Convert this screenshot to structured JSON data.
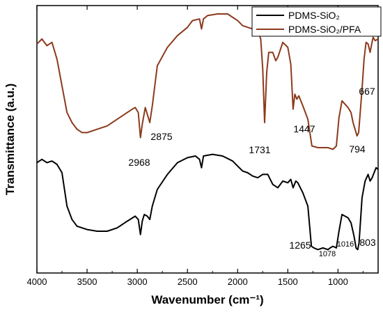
{
  "chart_data": {
    "type": "line",
    "xlabel": "Wavenumber (cm⁻¹)",
    "ylabel": "Transmittance (a.u.)",
    "xlim": [
      4000,
      600
    ],
    "x_reversed": true,
    "x_ticks": [
      4000,
      3500,
      3000,
      2500,
      2000,
      1500,
      1000
    ],
    "y_ticks_shown": false,
    "grid": false,
    "legend_position": "top-right",
    "series": [
      {
        "name": "PDMS-SiO₂",
        "color": "#000000",
        "points": [
          [
            4000,
            0.56
          ],
          [
            3950,
            0.58
          ],
          [
            3900,
            0.56
          ],
          [
            3850,
            0.57
          ],
          [
            3800,
            0.55
          ],
          [
            3750,
            0.5
          ],
          [
            3700,
            0.3
          ],
          [
            3650,
            0.22
          ],
          [
            3600,
            0.18
          ],
          [
            3500,
            0.16
          ],
          [
            3400,
            0.15
          ],
          [
            3300,
            0.15
          ],
          [
            3200,
            0.17
          ],
          [
            3100,
            0.21
          ],
          [
            3020,
            0.24
          ],
          [
            2990,
            0.22
          ],
          [
            2968,
            0.13
          ],
          [
            2950,
            0.21
          ],
          [
            2930,
            0.25
          ],
          [
            2900,
            0.24
          ],
          [
            2875,
            0.22
          ],
          [
            2850,
            0.3
          ],
          [
            2800,
            0.4
          ],
          [
            2700,
            0.49
          ],
          [
            2600,
            0.56
          ],
          [
            2500,
            0.59
          ],
          [
            2420,
            0.6
          ],
          [
            2380,
            0.58
          ],
          [
            2360,
            0.53
          ],
          [
            2340,
            0.6
          ],
          [
            2250,
            0.61
          ],
          [
            2150,
            0.6
          ],
          [
            2050,
            0.57
          ],
          [
            2000,
            0.54
          ],
          [
            1950,
            0.51
          ],
          [
            1900,
            0.5
          ],
          [
            1850,
            0.48
          ],
          [
            1800,
            0.47
          ],
          [
            1750,
            0.49
          ],
          [
            1700,
            0.49
          ],
          [
            1650,
            0.43
          ],
          [
            1600,
            0.41
          ],
          [
            1550,
            0.45
          ],
          [
            1500,
            0.44
          ],
          [
            1470,
            0.46
          ],
          [
            1447,
            0.41
          ],
          [
            1420,
            0.45
          ],
          [
            1400,
            0.44
          ],
          [
            1350,
            0.38
          ],
          [
            1300,
            0.3
          ],
          [
            1265,
            0.06
          ],
          [
            1240,
            0.05
          ],
          [
            1200,
            0.04
          ],
          [
            1150,
            0.05
          ],
          [
            1100,
            0.04
          ],
          [
            1078,
            0.05
          ],
          [
            1050,
            0.06
          ],
          [
            1016,
            0.05
          ],
          [
            990,
            0.15
          ],
          [
            960,
            0.25
          ],
          [
            930,
            0.24
          ],
          [
            900,
            0.23
          ],
          [
            870,
            0.2
          ],
          [
            840,
            0.12
          ],
          [
            820,
            0.05
          ],
          [
            803,
            0.04
          ],
          [
            790,
            0.08
          ],
          [
            760,
            0.35
          ],
          [
            730,
            0.45
          ],
          [
            700,
            0.49
          ],
          [
            680,
            0.45
          ],
          [
            660,
            0.47
          ],
          [
            640,
            0.5
          ],
          [
            620,
            0.53
          ],
          [
            600,
            0.52
          ]
        ]
      },
      {
        "name": "PDMS-SiO₂/PFA",
        "color": "#8b3a1c",
        "points": [
          [
            4000,
            1.27
          ],
          [
            3950,
            1.3
          ],
          [
            3900,
            1.26
          ],
          [
            3850,
            1.28
          ],
          [
            3800,
            1.18
          ],
          [
            3750,
            1.02
          ],
          [
            3700,
            0.86
          ],
          [
            3650,
            0.8
          ],
          [
            3600,
            0.76
          ],
          [
            3550,
            0.74
          ],
          [
            3500,
            0.74
          ],
          [
            3400,
            0.76
          ],
          [
            3300,
            0.78
          ],
          [
            3200,
            0.82
          ],
          [
            3100,
            0.86
          ],
          [
            3050,
            0.88
          ],
          [
            3020,
            0.89
          ],
          [
            2990,
            0.86
          ],
          [
            2968,
            0.71
          ],
          [
            2950,
            0.79
          ],
          [
            2920,
            0.89
          ],
          [
            2900,
            0.85
          ],
          [
            2875,
            0.8
          ],
          [
            2850,
            0.9
          ],
          [
            2800,
            1.14
          ],
          [
            2700,
            1.25
          ],
          [
            2600,
            1.32
          ],
          [
            2500,
            1.37
          ],
          [
            2450,
            1.41
          ],
          [
            2380,
            1.42
          ],
          [
            2360,
            1.36
          ],
          [
            2340,
            1.42
          ],
          [
            2300,
            1.44
          ],
          [
            2200,
            1.45
          ],
          [
            2100,
            1.45
          ],
          [
            2000,
            1.41
          ],
          [
            1950,
            1.38
          ],
          [
            1900,
            1.37
          ],
          [
            1850,
            1.36
          ],
          [
            1800,
            1.35
          ],
          [
            1770,
            1.3
          ],
          [
            1750,
            1.12
          ],
          [
            1731,
            0.8
          ],
          [
            1710,
            1.1
          ],
          [
            1690,
            1.22
          ],
          [
            1650,
            1.22
          ],
          [
            1620,
            1.17
          ],
          [
            1600,
            1.19
          ],
          [
            1550,
            1.28
          ],
          [
            1500,
            1.25
          ],
          [
            1470,
            1.15
          ],
          [
            1447,
            0.88
          ],
          [
            1430,
            0.97
          ],
          [
            1410,
            0.94
          ],
          [
            1390,
            0.96
          ],
          [
            1350,
            0.9
          ],
          [
            1300,
            0.82
          ],
          [
            1260,
            0.66
          ],
          [
            1200,
            0.65
          ],
          [
            1150,
            0.65
          ],
          [
            1100,
            0.65
          ],
          [
            1050,
            0.64
          ],
          [
            1016,
            0.66
          ],
          [
            990,
            0.83
          ],
          [
            960,
            0.93
          ],
          [
            930,
            0.91
          ],
          [
            900,
            0.89
          ],
          [
            870,
            0.86
          ],
          [
            850,
            0.8
          ],
          [
            810,
            0.72
          ],
          [
            794,
            0.74
          ],
          [
            780,
            0.85
          ],
          [
            760,
            1.0
          ],
          [
            740,
            1.18
          ],
          [
            720,
            1.28
          ],
          [
            700,
            1.27
          ],
          [
            680,
            1.22
          ],
          [
            667,
            1.26
          ],
          [
            650,
            1.31
          ],
          [
            630,
            1.29
          ],
          [
            600,
            1.3
          ]
        ]
      }
    ],
    "annotations": [
      {
        "text": "2968",
        "x": 2968,
        "size": "normal"
      },
      {
        "text": "2875",
        "x": 2875,
        "size": "normal"
      },
      {
        "text": "1731",
        "x": 1731,
        "size": "normal"
      },
      {
        "text": "1447",
        "x": 1447,
        "size": "normal"
      },
      {
        "text": "794",
        "x": 794,
        "size": "normal"
      },
      {
        "text": "667",
        "x": 667,
        "size": "normal"
      },
      {
        "text": "1265",
        "x": 1265,
        "size": "normal"
      },
      {
        "text": "1078",
        "x": 1078,
        "size": "small"
      },
      {
        "text": "1016",
        "x": 1016,
        "size": "small"
      },
      {
        "text": "803",
        "x": 803,
        "size": "normal"
      }
    ]
  }
}
